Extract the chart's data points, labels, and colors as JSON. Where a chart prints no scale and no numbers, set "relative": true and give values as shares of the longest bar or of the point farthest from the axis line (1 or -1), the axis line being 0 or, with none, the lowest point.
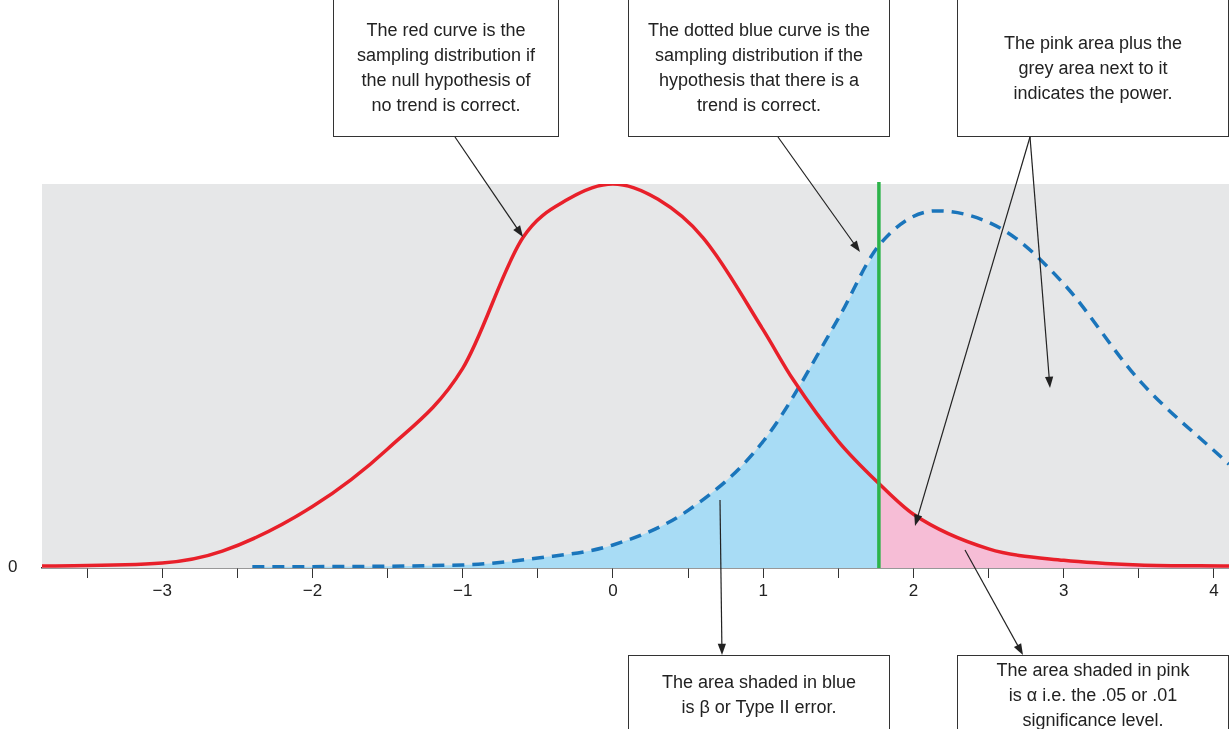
{
  "chart_data": {
    "type": "line",
    "relative": true,
    "xlim": [
      -3.8,
      4.1
    ],
    "xticks": [
      {
        "value": -3.5,
        "label": null
      },
      {
        "value": -3,
        "label": "−3"
      },
      {
        "value": -2.5,
        "label": null
      },
      {
        "value": -2,
        "label": "−2"
      },
      {
        "value": -1.5,
        "label": null
      },
      {
        "value": -1,
        "label": "−1"
      },
      {
        "value": -0.5,
        "label": null
      },
      0,
      {
        "value": 0.5,
        "label": null
      },
      1,
      {
        "value": 1.5,
        "label": null
      },
      2,
      {
        "value": 2.5,
        "label": null
      },
      3,
      {
        "value": 3.5,
        "label": null
      },
      4
    ],
    "series": [
      {
        "color": "#e8202a",
        "line_style": "solid",
        "x": [
          -3.8,
          -3,
          -2.6,
          -2,
          -1.5,
          -1,
          -0.6,
          -0.3,
          0,
          0.3,
          0.6,
          1,
          1.2,
          1.5,
          1.77,
          2,
          2.5,
          3,
          3.5,
          4.1
        ],
        "values": [
          0.005,
          0.013,
          0.044,
          0.16,
          0.31,
          0.52,
          0.86,
          0.96,
          1,
          0.96,
          0.86,
          0.62,
          0.49,
          0.33,
          0.22,
          0.14,
          0.05,
          0.02,
          0.008,
          0.005
        ]
      },
      {
        "color": "#1a75bb",
        "line_style": "dashed",
        "x": [
          -2.4,
          -1,
          -0.5,
          0,
          0.5,
          1,
          1.5,
          1.77,
          2.15,
          2.6,
          3,
          3.5,
          4.1
        ],
        "values": [
          0.003,
          0.008,
          0.026,
          0.06,
          0.15,
          0.33,
          0.65,
          0.84,
          0.93,
          0.88,
          0.74,
          0.49,
          0.27
        ]
      },
      {
        "type": "area",
        "color": "#a8dcf5",
        "x": [
          -2.4,
          -1,
          -0.5,
          0,
          0.5,
          1,
          1.5,
          1.77
        ],
        "values": [
          0.003,
          0.008,
          0.026,
          0.06,
          0.15,
          0.33,
          0.65,
          0.84
        ]
      },
      {
        "type": "area",
        "color": "#f6bdd6",
        "x": [
          1.77,
          2,
          2.5,
          3,
          3.5,
          4.1
        ],
        "values": [
          0.22,
          0.14,
          0.05,
          0.02,
          0.008,
          0.005
        ]
      }
    ],
    "ref_lines": [
      {
        "axis": "x",
        "value": 1.77,
        "color": "#2db34a"
      }
    ],
    "annotations": [
      "The red curve is the sampling distribution if the null hypothesis of no trend is correct.",
      "The dotted blue curve is the sampling distribution if the hypothesis that there is a trend is correct.",
      "The pink area plus the grey area next to it indicates the power.",
      "The area shaded in blue is β or Type II error.",
      "The area shaded in pink is α i.e. the .05 or .01 significance level.",
      "0"
    ]
  }
}
